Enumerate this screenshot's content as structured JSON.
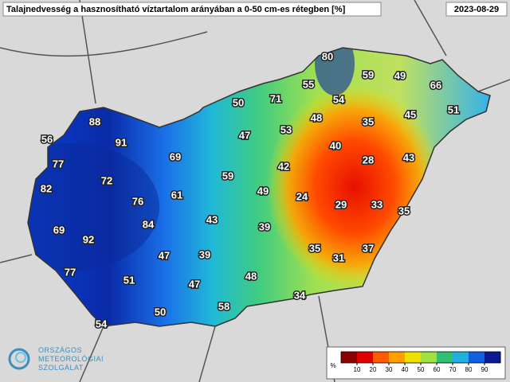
{
  "title": "Talajnedvesség a hasznosítható víztartalom arányában a 0-50 cm-es rétegben [%]",
  "date": "2023-08-29",
  "stations": [
    80,
    59,
    49,
    66,
    55,
    71,
    54,
    50,
    51,
    45,
    48,
    35,
    53,
    47,
    88,
    56,
    91,
    40,
    28,
    43,
    69,
    77,
    72,
    42,
    59,
    82,
    76,
    61,
    49,
    24,
    29,
    33,
    35,
    84,
    43,
    39,
    69,
    92,
    35,
    37,
    31,
    47,
    39,
    77,
    51,
    48,
    47,
    34,
    58,
    50,
    54
  ],
  "colorbar": {
    "label": "%",
    "range": [
      0,
      100
    ],
    "ticks": [
      10,
      20,
      30,
      40,
      50,
      60,
      70,
      80,
      90
    ],
    "colors": [
      "#8b0000",
      "#e00000",
      "#ff5a00",
      "#ffa000",
      "#f0e000",
      "#a0e040",
      "#30c070",
      "#20b0e0",
      "#1060e0",
      "#0a1a90"
    ]
  },
  "logo": [
    "ORSZÁGOS",
    "METEOROLÓGIAI",
    "SZOLGÁLAT"
  ]
}
